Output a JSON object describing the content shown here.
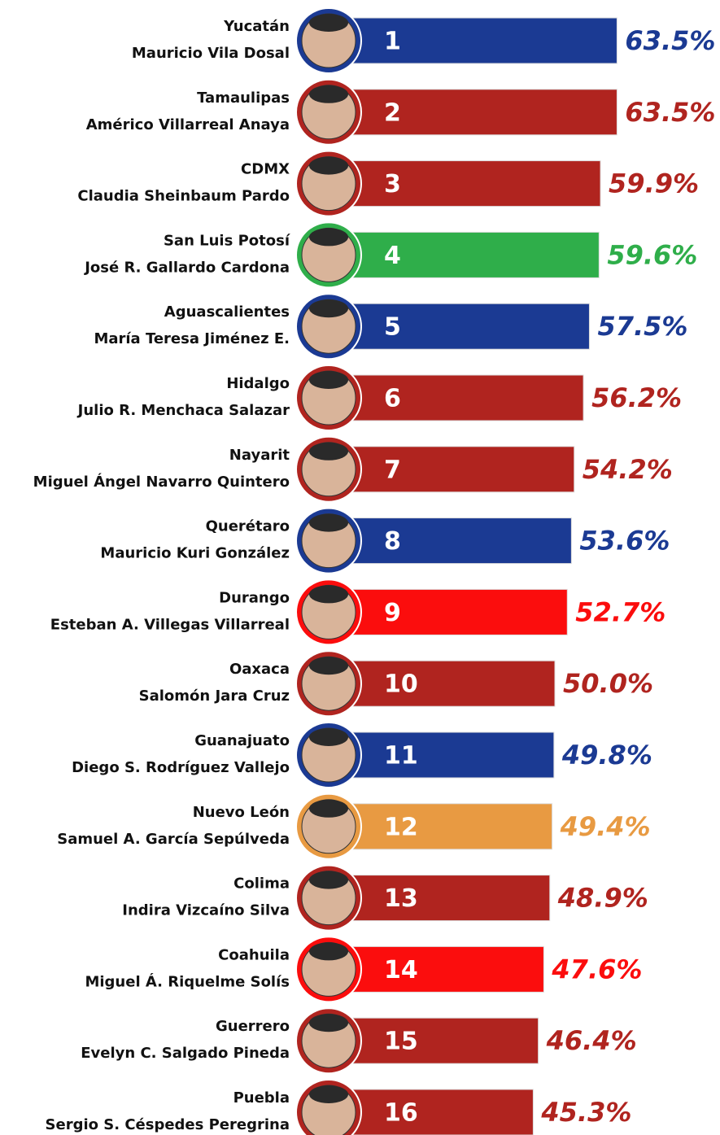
{
  "chart_data": {
    "type": "bar",
    "categories": [
      "Yucatán",
      "Tamaulipas",
      "CDMX",
      "San Luis Potosí",
      "Aguascalientes",
      "Hidalgo",
      "Nayarit",
      "Querétaro",
      "Durango",
      "Oaxaca",
      "Guanajuato",
      "Nuevo León",
      "Colima",
      "Coahuila",
      "Guerrero",
      "Puebla"
    ],
    "governors": [
      "Mauricio Vila Dosal",
      "Américo Villarreal Anaya",
      "Claudia Sheinbaum Pardo",
      "José R. Gallardo Cardona",
      "María Teresa Jiménez E.",
      "Julio R. Menchaca Salazar",
      "Miguel Ángel Navarro Quintero",
      "Mauricio Kuri González",
      "Esteban A. Villegas Villarreal",
      "Salomón Jara Cruz",
      "Diego S. Rodríguez Vallejo",
      "Samuel A. García Sepúlveda",
      "Indira Vizcaíno Silva",
      "Miguel Á. Riquelme Solís",
      "Evelyn C. Salgado Pineda",
      "Sergio S. Céspedes Peregrina"
    ],
    "ranks": [
      1,
      2,
      3,
      4,
      5,
      6,
      7,
      8,
      9,
      10,
      11,
      12,
      13,
      14,
      15,
      16
    ],
    "values": [
      63.5,
      63.5,
      59.9,
      59.6,
      57.5,
      56.2,
      54.2,
      53.6,
      52.7,
      50.0,
      49.8,
      49.4,
      48.9,
      47.6,
      46.4,
      45.3
    ],
    "value_labels": [
      "63.5%",
      "63.5%",
      "59.9%",
      "59.6%",
      "57.5%",
      "56.2%",
      "54.2%",
      "53.6%",
      "52.7%",
      "50.0%",
      "49.8%",
      "49.4%",
      "48.9%",
      "47.6%",
      "46.4%",
      "45.3%"
    ],
    "colors": [
      "#1b3a93",
      "#b0241f",
      "#b0241f",
      "#2fae4a",
      "#1b3a93",
      "#b0241f",
      "#b0241f",
      "#1b3a93",
      "#fb0d0d",
      "#b0241f",
      "#1b3a93",
      "#e89a42",
      "#b0241f",
      "#fb0d0d",
      "#b0241f",
      "#b0241f"
    ]
  }
}
